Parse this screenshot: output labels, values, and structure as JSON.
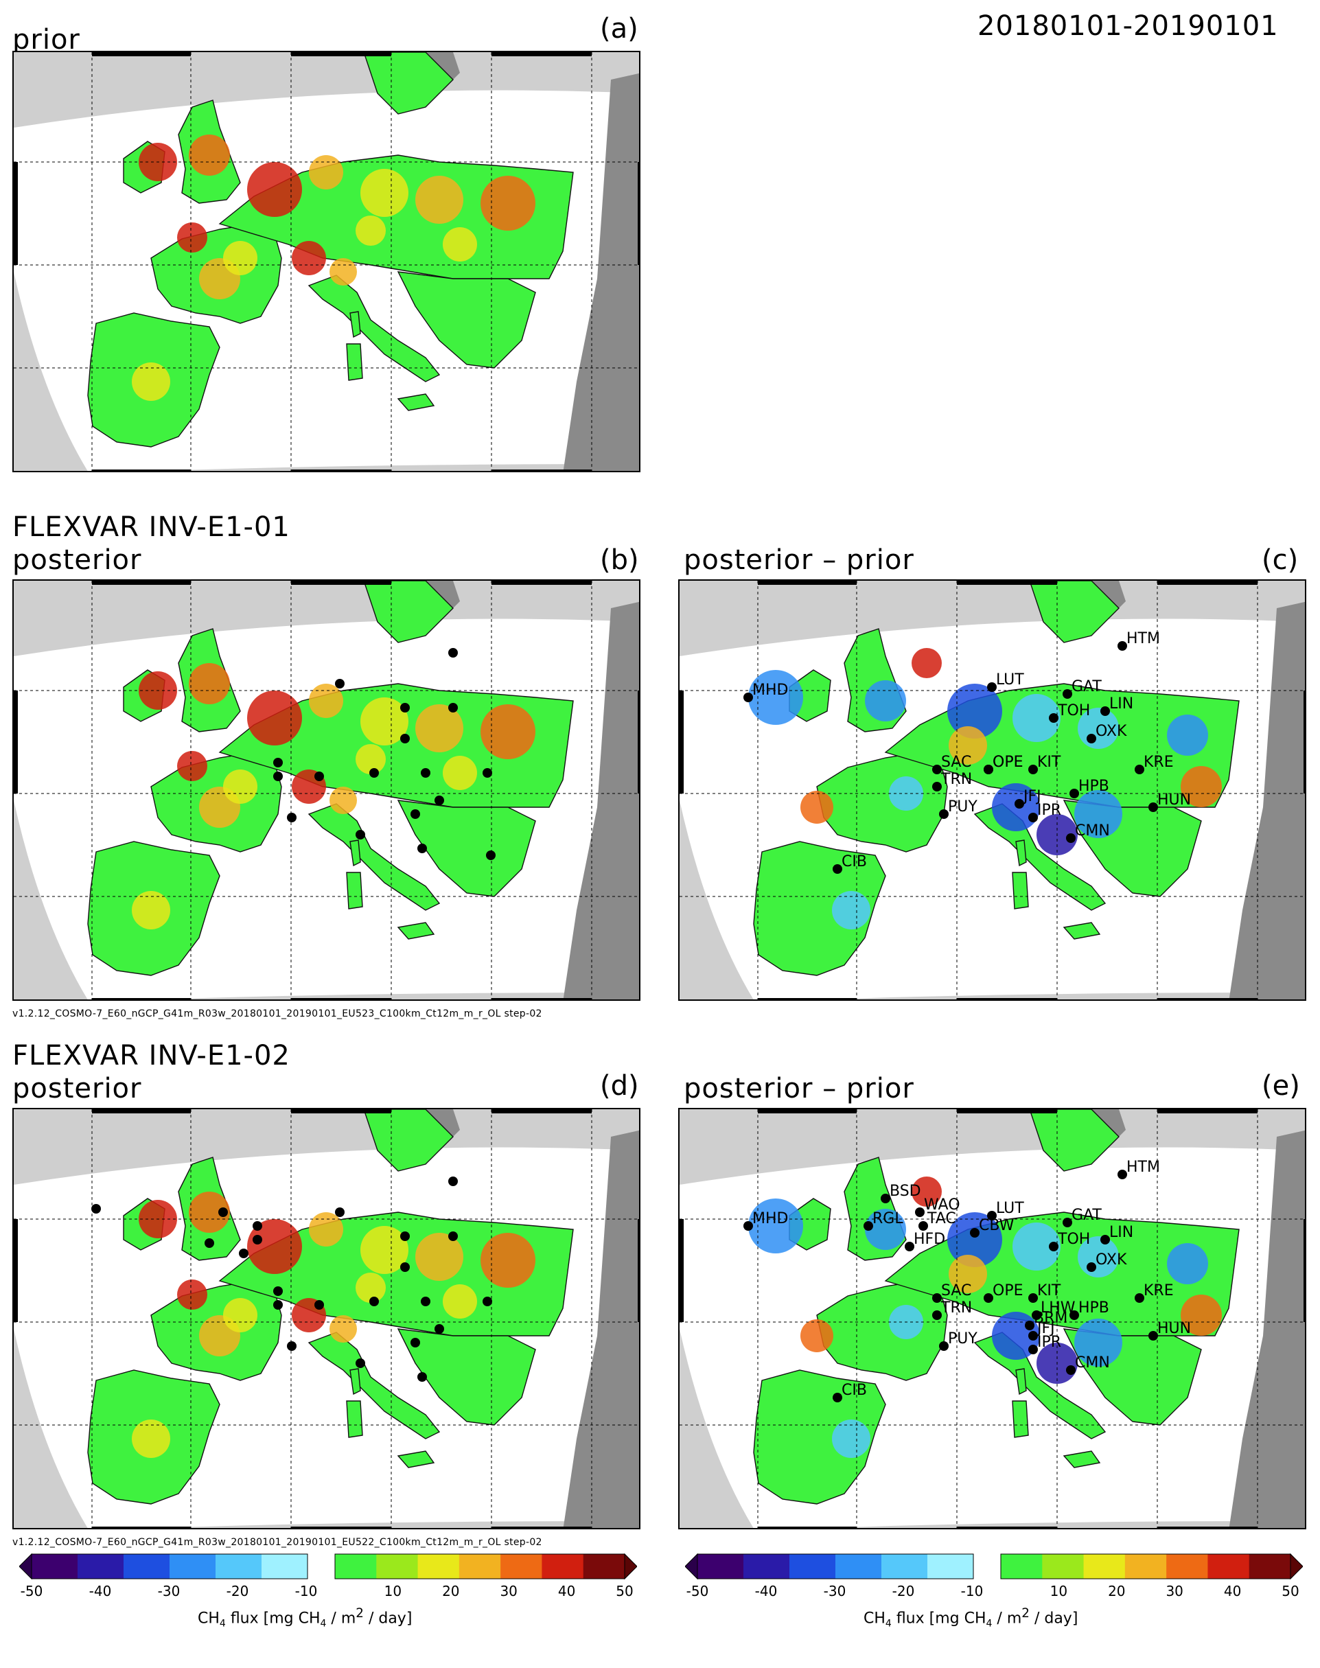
{
  "date_range": "20180101-20190101",
  "panels": {
    "a": {
      "title": "prior",
      "letter": "(a)"
    },
    "b": {
      "title_line1": "FLEXVAR INV-E1-01",
      "title_line2": "posterior",
      "letter": "(b)"
    },
    "c": {
      "title": "posterior – prior",
      "letter": "(c)"
    },
    "d": {
      "title_line1": "FLEXVAR INV-E1-02",
      "title_line2": "posterior",
      "letter": "(d)"
    },
    "e": {
      "title": "posterior – prior",
      "letter": "(e)"
    }
  },
  "footers": {
    "b": "v1.2.12_COSMO-7_E60_nGCP_G41m_R03w_20180101_20190101_EU523_C100km_Ct12m_m_r_OL step-02",
    "d": "v1.2.12_COSMO-7_E60_nGCP_G41m_R03w_20180101_20190101_EU522_C100km_Ct12m_m_r_OL step-02"
  },
  "stations": {
    "c": [
      "HTM",
      "LUT",
      "GAT",
      "LIN",
      "TOH",
      "OXK",
      "KIT",
      "KRE",
      "MHD",
      "SAC",
      "TRN",
      "OPE",
      "HPB",
      "HUN",
      "OPE",
      "PUY",
      "JFJ",
      "IPR",
      "CMN",
      "CIB"
    ],
    "e": [
      "HTM",
      "BSD",
      "LUT",
      "WAO",
      "TAC",
      "GAT",
      "LIN",
      "TOH",
      "MHD",
      "RGL",
      "CBW",
      "HFD",
      "OXK",
      "KIT",
      "KRE",
      "SAC",
      "OPE",
      "TRN",
      "LHW",
      "HPB",
      "BRM",
      "JFJ",
      "HUN",
      "PUY",
      "IPR",
      "CMN",
      "CIB"
    ]
  },
  "colorbar": {
    "ticks": [
      "-50",
      "-40",
      "-30",
      "-20",
      "-10",
      "10",
      "20",
      "30",
      "40",
      "50"
    ],
    "label": "CH",
    "label_sub": "4",
    "label_mid": " flux [mg CH",
    "label_sub2": "4",
    "label_end": " / m",
    "label_sup": "2",
    "label_tail": " / day]"
  },
  "colors": {
    "negative_scale": [
      "#3c006e",
      "#2a1ba8",
      "#1e4fe0",
      "#2f8ff5",
      "#55c8fa",
      "#9ff1ff"
    ],
    "positive_scale": [
      "#3ff23f",
      "#9be81c",
      "#e8e81a",
      "#f2b221",
      "#ee6a14",
      "#d11f0f",
      "#7a0a0a"
    ],
    "land_out_of_domain": "#808080",
    "sea_out_of_domain": "#cccccc"
  }
}
